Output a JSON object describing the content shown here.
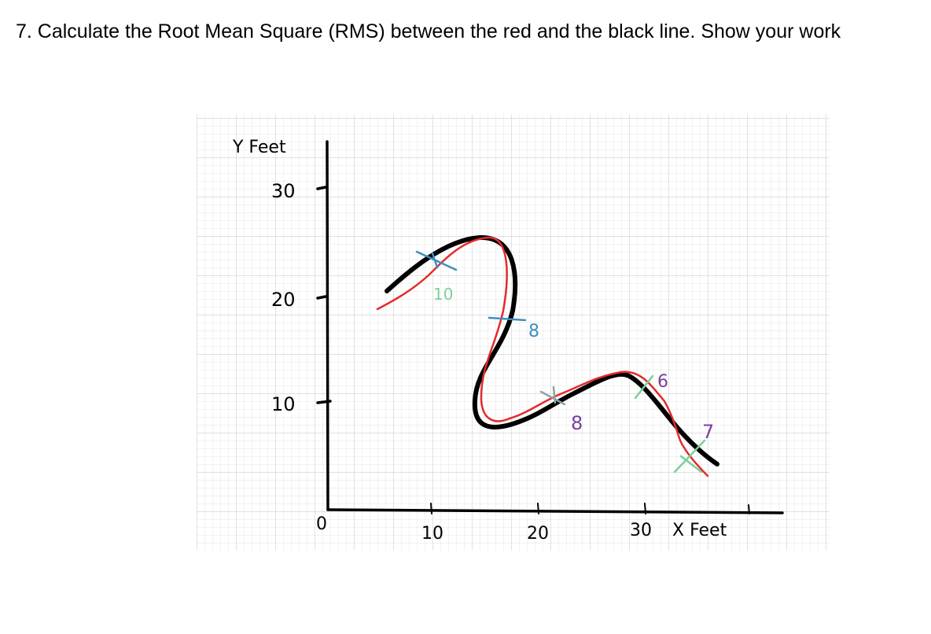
{
  "question": "7. Calculate the Root Mean Square (RMS) between the red and the black line. Show your work",
  "axes": {
    "y_label": "Y Feet",
    "x_label": "X Feet",
    "origin_label": "0",
    "y_ticks": [
      "10",
      "20",
      "30"
    ],
    "x_ticks": [
      "10",
      "20",
      "30"
    ]
  },
  "distance_labels": [
    "10",
    "8",
    "8",
    "6",
    "7"
  ],
  "colors": {
    "black_line": "#000000",
    "red_line": "#e32b2b",
    "grid": "#d9d9d9",
    "mark_blue": "#3d8fc0",
    "mark_purple": "#7a3fa0",
    "mark_green": "#7ccf9b",
    "mark_gray": "#8ba3a8"
  }
}
